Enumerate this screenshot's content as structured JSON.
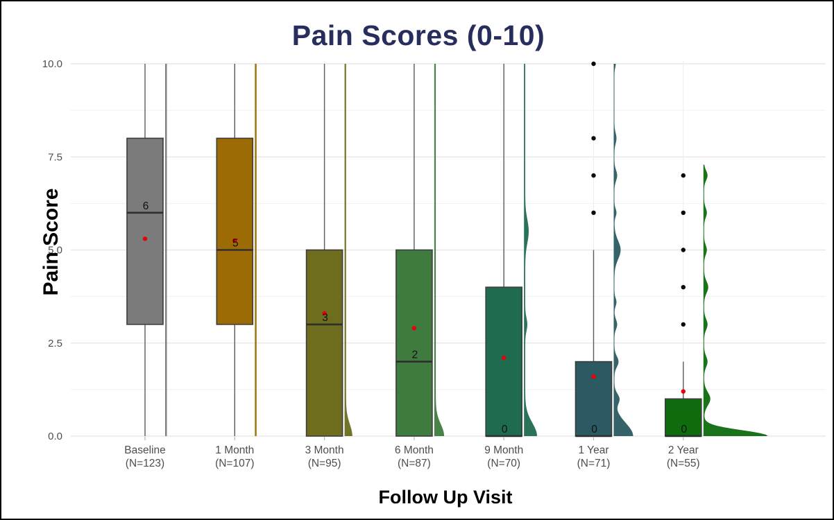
{
  "figure": {
    "title": "Pain Scores (0-10)",
    "title_color": "#272e5d",
    "x_axis_title": "Follow Up Visit",
    "y_axis_title": "Pain Score"
  },
  "chart_data": {
    "type": "boxplot",
    "style": "raincloud (box + half-violin density + mean dot + outliers)",
    "title": "Pain Scores (0-10)",
    "xlabel": "Follow Up Visit",
    "ylabel": "Pain Score",
    "ylim": [
      0,
      10
    ],
    "y_major_ticks": [
      0,
      2.5,
      5,
      7.5,
      10
    ],
    "y_tick_labels": [
      "0.0",
      "2.5",
      "5.0",
      "7.5",
      "10.0"
    ],
    "y_minor_gridlines": [
      1.25,
      3.75,
      6.25,
      8.75
    ],
    "grid": "horizontal major+minor, faint vertical at category centers",
    "legend": "none",
    "mean_marker_color": "#e8000b",
    "outlier_color": "#0a0a0a",
    "tick_label_color": "#4d4d4d",
    "categories": [
      "Baseline",
      "1 Month",
      "3 Month",
      "6 Month",
      "9 Month",
      "1 Year",
      "2 Year"
    ],
    "groups": [
      {
        "label": "Baseline",
        "n_label": "(N=123)",
        "n": 123,
        "color": "#7b7b7b",
        "q1": 3,
        "median": 6,
        "q3": 8,
        "whisker_low": 0,
        "whisker_high": 10,
        "mean": 5.3,
        "median_label": "6",
        "outliers": [],
        "density": {
          "base": 2.5,
          "range": [
            0,
            10
          ],
          "bumps": []
        }
      },
      {
        "label": "1 Month",
        "n_label": "(N=107)",
        "n": 107,
        "color": "#9c6b06",
        "q1": 3,
        "median": 5,
        "q3": 8,
        "whisker_low": 0,
        "whisker_high": 10,
        "mean": 5.25,
        "median_label": "5",
        "outliers": [],
        "density": {
          "base": 2.5,
          "range": [
            0,
            10
          ],
          "bumps": []
        }
      },
      {
        "label": "3 Month",
        "n_label": "(N=95)",
        "n": 95,
        "color": "#6d6d1d",
        "q1": 0,
        "median": 3,
        "q3": 5,
        "whisker_low": 0,
        "whisker_high": 10,
        "mean": 3.3,
        "median_label": "3",
        "outliers": [],
        "density": {
          "base": 2.2,
          "range": [
            0,
            10
          ],
          "bumps": [
            {
              "c": 0,
              "h": 0.45,
              "w": 9
            }
          ]
        }
      },
      {
        "label": "6 Month",
        "n_label": "(N=87)",
        "n": 87,
        "color": "#3f7a3f",
        "q1": 0,
        "median": 2,
        "q3": 5,
        "whisker_low": 0,
        "whisker_high": 10,
        "mean": 2.9,
        "median_label": "2",
        "outliers": [],
        "density": {
          "base": 2.2,
          "range": [
            0,
            10
          ],
          "bumps": [
            {
              "c": 0,
              "h": 0.45,
              "w": 12
            }
          ]
        }
      },
      {
        "label": "9 Month",
        "n_label": "(N=70)",
        "n": 70,
        "color": "#1f6b50",
        "q1": 0,
        "median": 0,
        "q3": 4,
        "whisker_low": 0,
        "whisker_high": 10,
        "mean": 2.1,
        "median_label": "0",
        "outliers": [],
        "density": {
          "base": 1.8,
          "range": [
            0,
            10
          ],
          "bumps": [
            {
              "c": 0,
              "h": 0.5,
              "w": 17
            },
            {
              "c": 3,
              "h": 0.25,
              "w": 3
            },
            {
              "c": 5.5,
              "h": 0.45,
              "w": 5
            }
          ]
        }
      },
      {
        "label": "1 Year",
        "n_label": "(N=71)",
        "n": 71,
        "color": "#2b5a62",
        "q1": 0,
        "median": 0,
        "q3": 2,
        "whisker_low": 0,
        "whisker_high": 5,
        "mean": 1.6,
        "median_label": "0",
        "outliers": [
          6,
          7,
          8,
          10
        ],
        "density": {
          "base": 1.0,
          "range": [
            0,
            10
          ],
          "bumps": [
            {
              "c": 0,
              "h": 0.5,
              "w": 27
            },
            {
              "c": 1,
              "h": 0.2,
              "w": 7
            },
            {
              "c": 2,
              "h": 0.2,
              "w": 6
            },
            {
              "c": 3,
              "h": 0.18,
              "w": 4
            },
            {
              "c": 3.6,
              "h": 0.15,
              "w": 3
            },
            {
              "c": 5,
              "h": 0.35,
              "w": 9
            },
            {
              "c": 6,
              "h": 0.15,
              "w": 3
            },
            {
              "c": 7,
              "h": 0.2,
              "w": 4
            },
            {
              "c": 8,
              "h": 0.2,
              "w": 3
            },
            {
              "c": 10,
              "h": 0.15,
              "w": 2
            }
          ]
        }
      },
      {
        "label": "2 Year",
        "n_label": "(N=55)",
        "n": 55,
        "color": "#0e6c0e",
        "q1": 0,
        "median": 0,
        "q3": 1,
        "whisker_low": 0,
        "whisker_high": 2,
        "mean": 1.2,
        "median_label": "0",
        "outliers": [
          3,
          4,
          5,
          6,
          7
        ],
        "density": {
          "base": 1.0,
          "range": [
            0,
            7.3
          ],
          "bumps": [
            {
              "c": 0,
              "h": 0.22,
              "w": 92
            },
            {
              "c": 1,
              "h": 0.25,
              "w": 9
            },
            {
              "c": 2,
              "h": 0.2,
              "w": 5
            },
            {
              "c": 3,
              "h": 0.2,
              "w": 5
            },
            {
              "c": 4,
              "h": 0.22,
              "w": 6
            },
            {
              "c": 5,
              "h": 0.18,
              "w": 4
            },
            {
              "c": 6,
              "h": 0.18,
              "w": 4
            },
            {
              "c": 7,
              "h": 0.18,
              "w": 5
            }
          ]
        }
      }
    ]
  }
}
